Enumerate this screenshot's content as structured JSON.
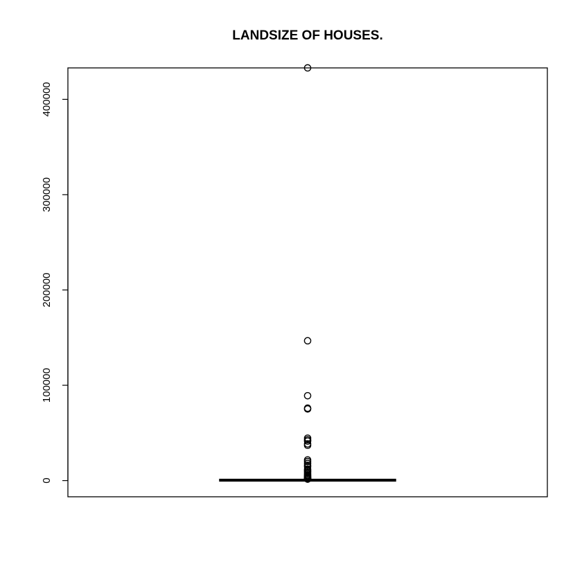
{
  "chart_data": {
    "type": "boxplot",
    "title": "LANDSIZE OF HOUSES.",
    "xlabel": "",
    "ylabel": "",
    "ylim": [
      -17000,
      433000
    ],
    "y_ticks": [
      {
        "value": 0,
        "label": "0"
      },
      {
        "value": 100000,
        "label": "100000"
      },
      {
        "value": 200000,
        "label": "200000"
      },
      {
        "value": 300000,
        "label": "300000"
      },
      {
        "value": 400000,
        "label": "400000"
      }
    ],
    "box": {
      "min": 0,
      "q1": 180,
      "median": 440,
      "q3": 650,
      "max": 1350
    },
    "outliers": [
      433014,
      146699,
      89030,
      76000,
      75100,
      44500,
      42800,
      41400,
      38490,
      37000,
      21715,
      20000,
      18000,
      16000,
      14500,
      12000,
      10800,
      9800,
      8500,
      7200,
      6000,
      5000,
      4200,
      3500,
      2900,
      2400,
      2000,
      1700,
      1500
    ],
    "grid": false,
    "colors": {
      "stroke": "#000000",
      "background": "#ffffff"
    }
  }
}
